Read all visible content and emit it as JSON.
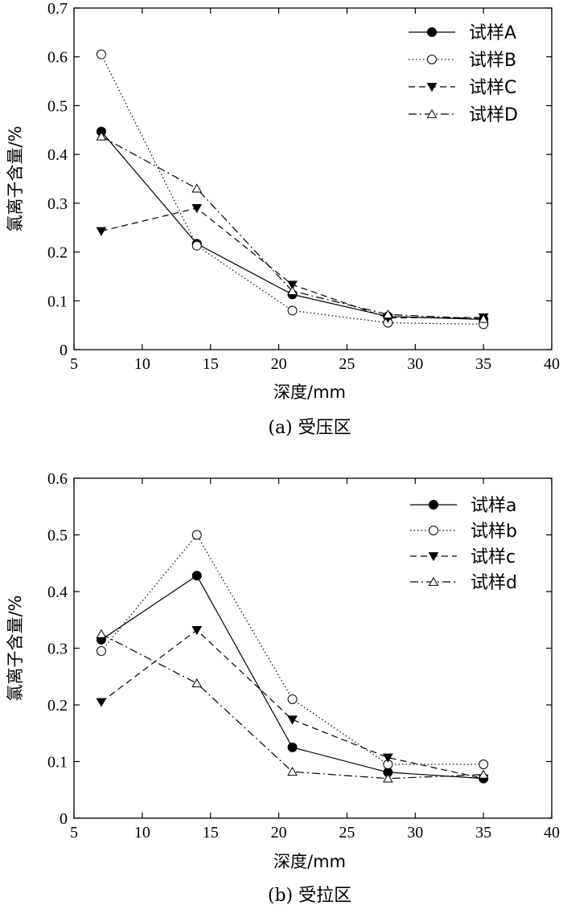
{
  "chart_data": [
    {
      "type": "line",
      "caption": "(a) 受压区",
      "xlabel": "深度/mm",
      "ylabel": "氯离子含量/%",
      "xlim": [
        5,
        40
      ],
      "ylim": [
        0,
        0.7
      ],
      "xticks": [
        5,
        10,
        15,
        20,
        25,
        30,
        35,
        40
      ],
      "yticks": [
        0,
        0.1,
        0.2,
        0.3,
        0.4,
        0.5,
        0.6,
        0.7
      ],
      "grid": false,
      "legend_position": "top-right",
      "x": [
        7,
        14,
        21,
        28,
        35
      ],
      "series": [
        {
          "name": "试样A",
          "marker": "filled-circle",
          "line": "solid",
          "values": [
            0.447,
            0.217,
            0.113,
            0.068,
            0.062
          ]
        },
        {
          "name": "试样B",
          "marker": "open-circle",
          "line": "dotted",
          "values": [
            0.605,
            0.213,
            0.08,
            0.055,
            0.052
          ]
        },
        {
          "name": "试样C",
          "marker": "filled-triangle-down",
          "line": "dashed",
          "values": [
            0.243,
            0.29,
            0.133,
            0.065,
            0.066
          ]
        },
        {
          "name": "试样D",
          "marker": "open-triangle-up",
          "line": "dash-dot",
          "values": [
            0.437,
            0.33,
            0.12,
            0.072,
            0.063
          ]
        }
      ]
    },
    {
      "type": "line",
      "caption": "(b) 受拉区",
      "xlabel": "深度/mm",
      "ylabel": "氯离子含量/%",
      "xlim": [
        5,
        40
      ],
      "ylim": [
        0,
        0.6
      ],
      "xticks": [
        5,
        10,
        15,
        20,
        25,
        30,
        35,
        40
      ],
      "yticks": [
        0,
        0.1,
        0.2,
        0.3,
        0.4,
        0.5,
        0.6
      ],
      "grid": false,
      "legend_position": "top-right",
      "x": [
        7,
        14,
        21,
        28,
        35
      ],
      "series": [
        {
          "name": "试样a",
          "marker": "filled-circle",
          "line": "solid",
          "values": [
            0.315,
            0.428,
            0.125,
            0.081,
            0.07
          ]
        },
        {
          "name": "试样b",
          "marker": "open-circle",
          "line": "dotted",
          "values": [
            0.295,
            0.5,
            0.21,
            0.095,
            0.095
          ]
        },
        {
          "name": "试样c",
          "marker": "filled-triangle-down",
          "line": "dashed",
          "values": [
            0.205,
            0.332,
            0.174,
            0.107,
            0.07
          ]
        },
        {
          "name": "试样d",
          "marker": "open-triangle-up",
          "line": "dash-dot",
          "values": [
            0.325,
            0.238,
            0.082,
            0.07,
            0.077
          ]
        }
      ]
    }
  ]
}
